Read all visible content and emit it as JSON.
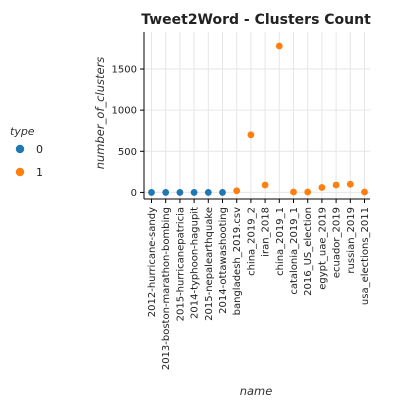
{
  "chart_data": {
    "type": "scatter",
    "title": "Tweet2Word - Clusters Count",
    "xlabel": "name",
    "ylabel": "number_of_clusters",
    "categories": [
      "2012-hurricane-sandy",
      "2013-boston-marathon-bombing",
      "2015-hurricanepatricia",
      "2014-typhoon-hagupit",
      "2015-nepalearthquake",
      "2014-ottawashooting",
      "bangladesh_2019.csv",
      "china_2019_2",
      "iran_2018",
      "china_2019_1",
      "catalonia_2019_1",
      "2016_US_election",
      "egypt_uae_2019",
      "ecuador_2019",
      "russian_2019",
      "usa_elections_2011"
    ],
    "ylim": [
      -80,
      1950
    ],
    "yticks": [
      "0",
      "500",
      "1000",
      "1500"
    ],
    "grid": true,
    "legend": {
      "title": "type",
      "placement": "left",
      "entries": [
        {
          "label": "0",
          "color": "#1f77b4"
        },
        {
          "label": "1",
          "color": "#ff7f0e"
        }
      ]
    },
    "series": [
      {
        "type_value": "0",
        "color": "#1f77b4",
        "points": [
          {
            "x": "2012-hurricane-sandy",
            "y": 0
          },
          {
            "x": "2013-boston-marathon-bombing",
            "y": 0
          },
          {
            "x": "2015-hurricanepatricia",
            "y": 0
          },
          {
            "x": "2014-typhoon-hagupit",
            "y": 0
          },
          {
            "x": "2015-nepalearthquake",
            "y": 0
          },
          {
            "x": "2014-ottawashooting",
            "y": 0
          }
        ]
      },
      {
        "type_value": "1",
        "color": "#ff7f0e",
        "points": [
          {
            "x": "bangladesh_2019.csv",
            "y": 20
          },
          {
            "x": "china_2019_2",
            "y": 700
          },
          {
            "x": "iran_2018",
            "y": 90
          },
          {
            "x": "china_2019_1",
            "y": 1780
          },
          {
            "x": "catalonia_2019_1",
            "y": 5
          },
          {
            "x": "2016_US_election",
            "y": 5
          },
          {
            "x": "egypt_uae_2019",
            "y": 60
          },
          {
            "x": "ecuador_2019",
            "y": 90
          },
          {
            "x": "russian_2019",
            "y": 100
          },
          {
            "x": "usa_elections_2011",
            "y": 5
          }
        ]
      }
    ]
  }
}
